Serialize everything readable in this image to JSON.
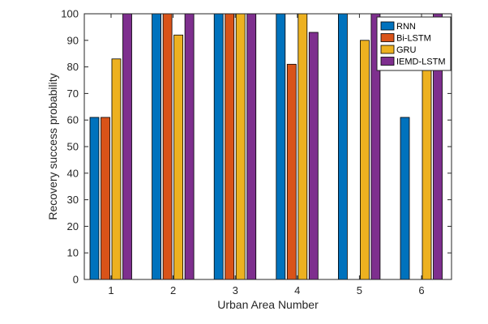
{
  "chart_data": {
    "type": "bar",
    "xlabel": "Urban Area Number",
    "ylabel": "Recovery success probability",
    "categories": [
      "1",
      "2",
      "3",
      "4",
      "5",
      "6"
    ],
    "ylim": [
      0,
      100
    ],
    "yticks": [
      0,
      10,
      20,
      30,
      40,
      50,
      60,
      70,
      80,
      90,
      100
    ],
    "grid": false,
    "legend_position": "top-right",
    "series": [
      {
        "name": "RNN",
        "color": "#0072BD",
        "values": [
          61,
          100,
          100,
          100,
          100,
          61
        ]
      },
      {
        "name": "Bi-LSTM",
        "color": "#D95319",
        "values": [
          61,
          100,
          100,
          81,
          0,
          0
        ]
      },
      {
        "name": "GRU",
        "color": "#EDB120",
        "values": [
          83,
          92,
          100,
          100,
          90,
          80
        ]
      },
      {
        "name": "IEMD-LSTM",
        "color": "#7E2F8E",
        "values": [
          100,
          100,
          100,
          93,
          100,
          100
        ]
      }
    ]
  }
}
